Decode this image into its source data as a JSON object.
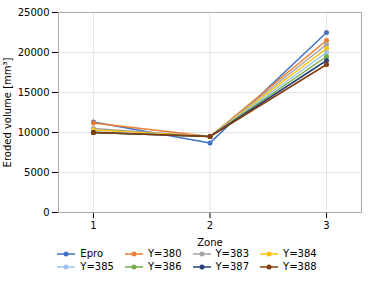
{
  "chart_data": {
    "type": "line",
    "x": [
      1,
      2,
      3
    ],
    "xlabel": "Zone",
    "ylabel": "Eroded volume [mm³]",
    "xlim": [
      0.7,
      3.3
    ],
    "xticks": [
      1,
      2,
      3
    ],
    "ylim": [
      0,
      25000
    ],
    "yticks": [
      0,
      5000,
      10000,
      15000,
      20000,
      25000
    ],
    "grid": true,
    "marker": "o",
    "legend": "bottom",
    "series": [
      {
        "name": "Epro",
        "color": "#4472C4",
        "values": [
          11300,
          8700,
          22500
        ]
      },
      {
        "name": "Y=380",
        "color": "#ED7D31",
        "values": [
          11200,
          9500,
          21500
        ]
      },
      {
        "name": "Y=383",
        "color": "#A5A5A5",
        "values": [
          10500,
          9500,
          21000
        ]
      },
      {
        "name": "Y=384",
        "color": "#FFC000",
        "values": [
          10300,
          9500,
          20500
        ]
      },
      {
        "name": "Y=385",
        "color": "#9DC3E6",
        "values": [
          10100,
          9500,
          20000
        ]
      },
      {
        "name": "Y=386",
        "color": "#70AD47",
        "values": [
          10000,
          9500,
          19500
        ]
      },
      {
        "name": "Y=387",
        "color": "#264478",
        "values": [
          10000,
          9500,
          19000
        ]
      },
      {
        "name": "Y=388",
        "color": "#843C0C",
        "values": [
          10000,
          9500,
          18500
        ]
      }
    ]
  }
}
